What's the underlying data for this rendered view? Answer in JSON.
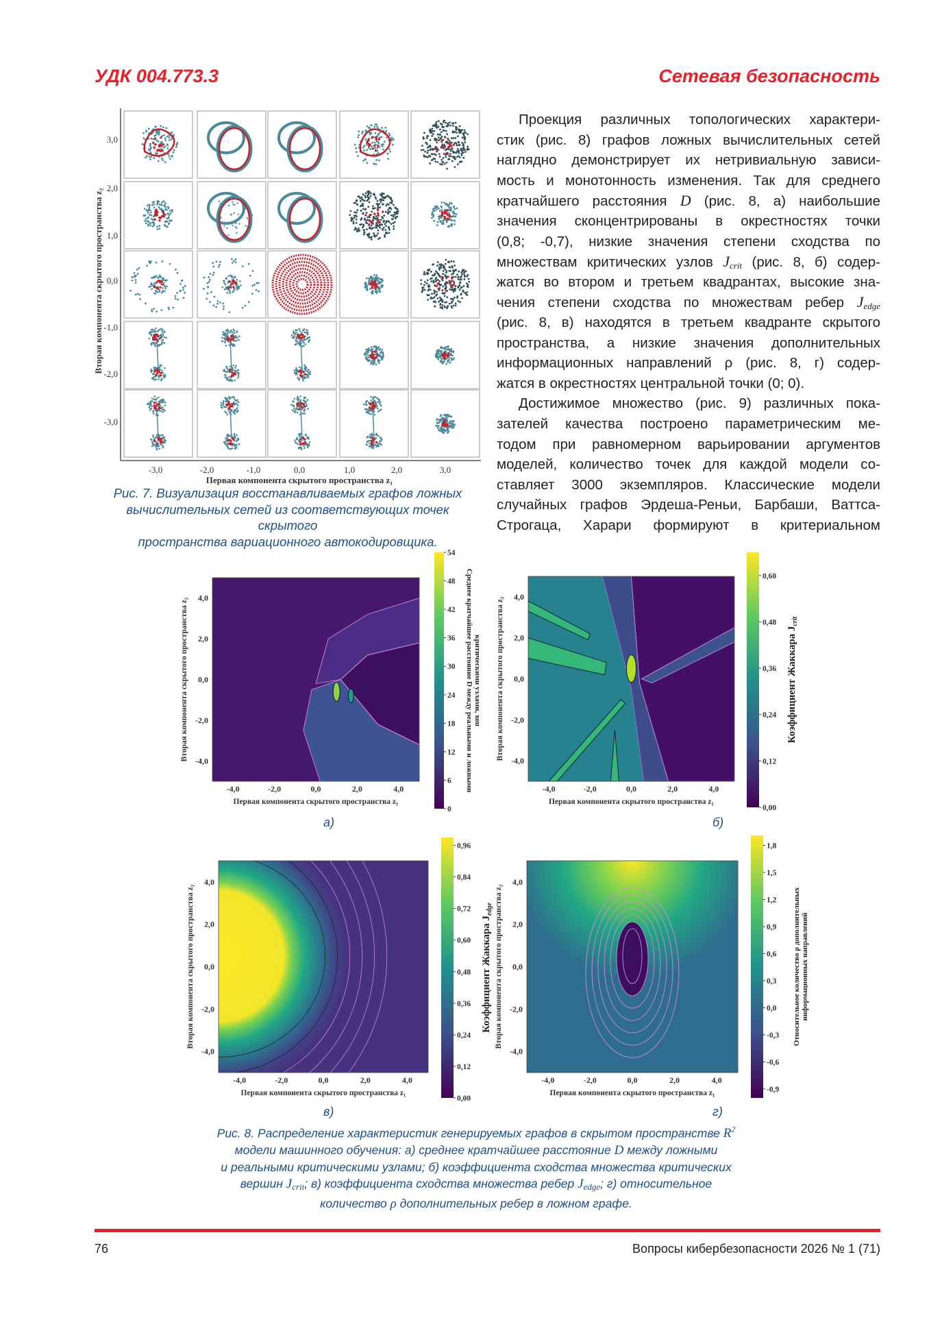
{
  "header": {
    "udc": "УДК 004.773.3",
    "section": "Сетевая безопасность"
  },
  "body_text": [
    {
      "indent": true,
      "parts": [
        {
          "t": "Проекция различных топологических характери-"
        }
      ]
    },
    {
      "parts": [
        {
          "t": "стик (рис. 8) графов ложных вычислительных сетей"
        }
      ]
    },
    {
      "parts": [
        {
          "t": "наглядно демонстрирует их нетривиальную зависи-"
        }
      ]
    },
    {
      "parts": [
        {
          "t": "мость и монотонность изменения. Так для среднего"
        }
      ]
    },
    {
      "parts": [
        {
          "t": "кратчайшего расстояния "
        },
        {
          "t": "D",
          "math": true
        },
        {
          "t": " (рис. 8, а) наибольшие"
        }
      ]
    },
    {
      "parts": [
        {
          "t": "значения сконцентрированы в окрестностях точки"
        }
      ]
    },
    {
      "parts": [
        {
          "t": "(0,8; -0,7), низкие значения степени сходства по"
        }
      ]
    },
    {
      "parts": [
        {
          "t": "множествам критических узлов "
        },
        {
          "t": "J",
          "math": true,
          "sub": "crit"
        },
        {
          "t": " (рис. 8, б) содер-"
        }
      ]
    },
    {
      "parts": [
        {
          "t": "жатся во втором и третьем квадрантах, высокие зна-"
        }
      ]
    },
    {
      "parts": [
        {
          "t": "чения степени сходства по множествам ребер "
        },
        {
          "t": "J",
          "math": true,
          "sub": "edge"
        }
      ]
    },
    {
      "parts": [
        {
          "t": "(рис. 8, в) находятся в третьем квадранте скрытого"
        }
      ]
    },
    {
      "parts": [
        {
          "t": "пространства, а низкие значения дополнительных"
        }
      ]
    },
    {
      "parts": [
        {
          "t": "информационных направлений ρ (рис. 8, г) содер-"
        }
      ]
    },
    {
      "last": true,
      "parts": [
        {
          "t": "жатся в окрестностях центральной точки (0; 0)."
        }
      ]
    },
    {
      "indent": true,
      "parts": [
        {
          "t": "Достижимое множество (рис. 9) различных пока-"
        }
      ]
    },
    {
      "parts": [
        {
          "t": "зателей качества построено параметрическим ме-"
        }
      ]
    },
    {
      "parts": [
        {
          "t": "тодом при равномерном варьировании аргументов"
        }
      ]
    },
    {
      "parts": [
        {
          "t": "моделей, количество точек для каждой модели со-"
        }
      ]
    },
    {
      "parts": [
        {
          "t": "ставляет 3000 экземпляров. Классические модели"
        }
      ]
    },
    {
      "parts": [
        {
          "t": "случайных графов Эрдеша-Реньи, Барбаши, Ваттса-"
        }
      ]
    },
    {
      "parts": [
        {
          "t": "Строгаца, Харари формируют в критериальном"
        }
      ]
    }
  ],
  "figure7": {
    "caption": [
      "Рис. 7. Визуализация восстанавливаемых графов ложных",
      "вычислительных сетей из соответствующих точек скрытого",
      "пространства вариационного автокодировщика."
    ],
    "xlabel": "Первая компонента скрытого пространства z₁",
    "ylabel": "Вторая компонента скрытого пространства z₂",
    "xticks": [
      "-3,0",
      "-2,0",
      "-1,0",
      "0,0",
      "1,0",
      "2,0",
      "3,0"
    ],
    "xtick_values": [
      -3,
      -2,
      -1,
      0,
      1,
      2,
      3
    ],
    "yticks": [
      "3,0",
      "2,0",
      "1,0",
      "0,0",
      "-1,0",
      "-2,0",
      "-3,0"
    ],
    "ytick_values": [
      3,
      2,
      1,
      0,
      -1,
      -2,
      -3
    ],
    "grid": "5x5",
    "colors": {
      "graph": "#4a8a9c",
      "critical": "#c0242b"
    }
  },
  "chart_data": [
    {
      "type": "heatmap",
      "panel_label": "а)",
      "xlabel": "Первая компонента скрытого пространства z₁",
      "ylabel": "Вторая компонента скрытого пространства z₂",
      "xlim": [
        -5,
        5
      ],
      "ylim": [
        -5,
        5
      ],
      "xticks": [
        "-4,0",
        "-2,0",
        "0,0",
        "2,0",
        "4,0"
      ],
      "yticks": [
        "4,0",
        "2,0",
        "0,0",
        "-2,0",
        "-4,0"
      ],
      "tick_values": [
        -4,
        -2,
        0,
        2,
        4
      ],
      "colorbar": {
        "label": [
          "Среднее кратчайшее расстояние D между реальными и ложными",
          "критическими узлами, хоп"
        ],
        "range": [
          0,
          54
        ],
        "ticks": [
          "0",
          "6",
          "12",
          "18",
          "24",
          "30",
          "36",
          "42",
          "48",
          "54"
        ],
        "tick_values": [
          0,
          6,
          12,
          18,
          24,
          30,
          36,
          42,
          48,
          54
        ]
      },
      "peak": {
        "z1": 0.8,
        "z2": -0.7
      }
    },
    {
      "type": "heatmap",
      "panel_label": "б)",
      "xlabel": "Первая компонента скрытого пространства z₁",
      "ylabel": "Вторая компонента скрытого пространства z₂",
      "xlim": [
        -5,
        5
      ],
      "ylim": [
        -5,
        5
      ],
      "xticks": [
        "-4,0",
        "-2,0",
        "0,0",
        "2,0",
        "4,0"
      ],
      "yticks": [
        "4,0",
        "2,0",
        "0,0",
        "-2,0",
        "-4,0"
      ],
      "tick_values": [
        -4,
        -2,
        0,
        2,
        4
      ],
      "colorbar": {
        "label": [
          "Коэффициент Жаккара J",
          "crit"
        ],
        "range": [
          0,
          0.66
        ],
        "ticks": [
          "0,00",
          "0,12",
          "0,24",
          "0,36",
          "0,48",
          "0,60"
        ],
        "tick_values": [
          0,
          0.12,
          0.24,
          0.36,
          0.48,
          0.6
        ]
      }
    },
    {
      "type": "heatmap",
      "panel_label": "в)",
      "xlabel": "Первая компонента скрытого пространства z₁",
      "ylabel": "Вторая компонента скрытого пространства z₂",
      "xlim": [
        -5,
        5
      ],
      "ylim": [
        -5,
        5
      ],
      "xticks": [
        "-4,0",
        "-2,0",
        "0,0",
        "2,0",
        "4,0"
      ],
      "yticks": [
        "4,0",
        "2,0",
        "0,0",
        "-2,0",
        "-4,0"
      ],
      "tick_values": [
        -4,
        -2,
        0,
        2,
        4
      ],
      "colorbar": {
        "label": [
          "Коэффициент Жаккара J",
          "edge"
        ],
        "range": [
          0,
          0.99
        ],
        "ticks": [
          "0,00",
          "0,12",
          "0,24",
          "0,36",
          "0,48",
          "0,60",
          "0,72",
          "0,84",
          "0,96"
        ],
        "tick_values": [
          0,
          0.12,
          0.24,
          0.36,
          0.48,
          0.6,
          0.72,
          0.84,
          0.96
        ]
      }
    },
    {
      "type": "heatmap",
      "panel_label": "г)",
      "xlabel": "Первая компонента скрытого пространства z₁",
      "ylabel": "Вторая компонента скрытого пространства z₂",
      "xlim": [
        -5,
        5
      ],
      "ylim": [
        -5,
        5
      ],
      "xticks": [
        "-4,0",
        "-2,0",
        "0,0",
        "2,0",
        "4,0"
      ],
      "yticks": [
        "4,0",
        "2,0",
        "0,0",
        "-2,0",
        "-4,0"
      ],
      "tick_values": [
        -4,
        -2,
        0,
        2,
        4
      ],
      "colorbar": {
        "label": [
          "Относительное количество ρ дополнительных",
          "информационных направлений"
        ],
        "range": [
          -1.0,
          1.91
        ],
        "ticks": [
          "-0,9",
          "-0,6",
          "-0,3",
          "0,0",
          "0,3",
          "0,6",
          "0,9",
          "1,2",
          "1,5",
          "1,8"
        ],
        "tick_values": [
          -0.9,
          -0.6,
          -0.3,
          0,
          0.3,
          0.6,
          0.9,
          1.2,
          1.5,
          1.8
        ]
      }
    }
  ],
  "colormap": [
    "#440154",
    "#3b528b",
    "#21918c",
    "#5ec962",
    "#fde725"
  ],
  "figure8": {
    "caption": [
      [
        {
          "t": "Рис. 8. Распределение характеристик генерируемых графов в скрытом пространстве "
        },
        {
          "t": "R",
          "math": true,
          "sup": "2"
        }
      ],
      [
        {
          "t": "модели машинного обучения: а) среднее кратчайшее расстояние "
        },
        {
          "t": "D",
          "math": true
        },
        {
          "t": " между ложными"
        }
      ],
      [
        {
          "t": "и реальными критическими узлами; б) коэффициента сходства множества критических"
        }
      ],
      [
        {
          "t": "вершин "
        },
        {
          "t": "J",
          "math": true,
          "sub": "crit"
        },
        {
          "t": "; в) коэффициента сходства множества ребер "
        },
        {
          "t": "J",
          "math": true,
          "sub": "edge"
        },
        {
          "t": "; г) относительное"
        }
      ],
      [
        {
          "t": "количество "
        },
        {
          "t": "ρ",
          "math": true
        },
        {
          "t": " дополнительных ребер в ложном графе."
        }
      ]
    ]
  },
  "footer": {
    "page_number": "76",
    "journal": "Вопросы кибербезопасности 2026 № 1 (71)"
  },
  "accent_colors": {
    "red": "#e8202a",
    "caption_blue": "#1f4e8c"
  }
}
